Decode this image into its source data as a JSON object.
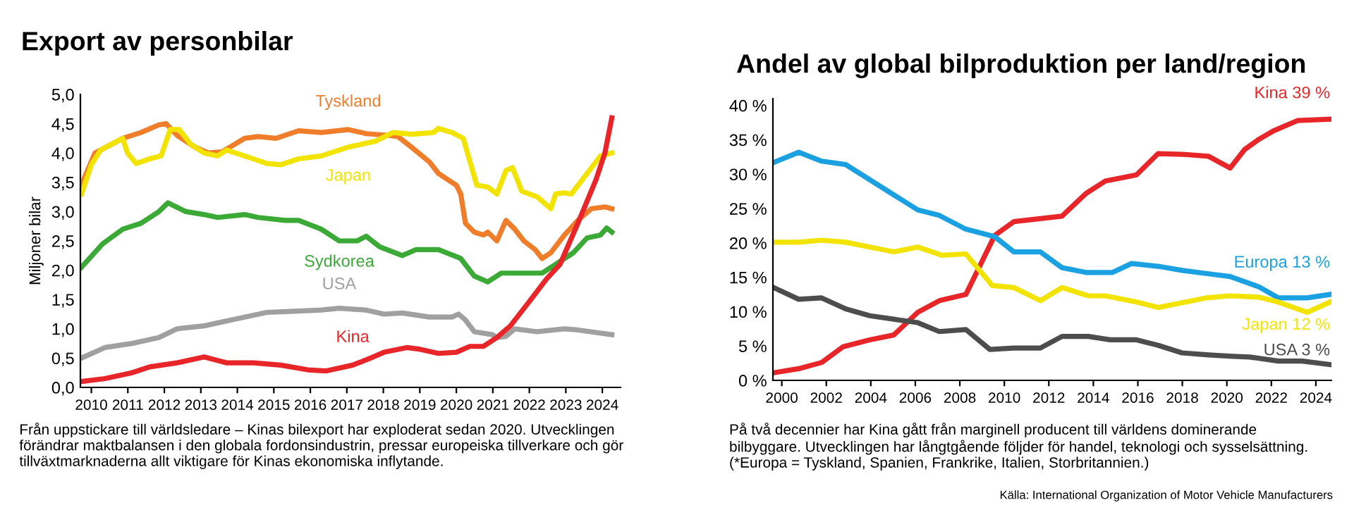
{
  "chart_data": [
    {
      "type": "line",
      "title": "Export av personbilar",
      "ylabel": "Miljoner bilar",
      "xlim": [
        2009.7,
        2024.5
      ],
      "ylim": [
        0,
        5
      ],
      "xticks": [
        2010,
        2011,
        2012,
        2013,
        2014,
        2015,
        2016,
        2017,
        2018,
        2019,
        2020,
        2021,
        2022,
        2023,
        2024
      ],
      "yticks": [
        {
          "value": 0,
          "label": "0,0"
        },
        {
          "value": 0.5,
          "label": "0,5"
        },
        {
          "value": 1,
          "label": "1,0"
        },
        {
          "value": 1.5,
          "label": "1,5"
        },
        {
          "value": 2,
          "label": "2,0"
        },
        {
          "value": 2.5,
          "label": "2,5"
        },
        {
          "value": 3,
          "label": "3,0"
        },
        {
          "value": 3.5,
          "label": "3,5"
        },
        {
          "value": 4,
          "label": "4,0"
        },
        {
          "value": 4.5,
          "label": "4,5"
        },
        {
          "value": 5,
          "label": "5,0"
        }
      ],
      "grid": false,
      "legend": false,
      "line_style": "solid",
      "marker": "none",
      "series": [
        {
          "name": "Tyskland",
          "color": "#f07d2a",
          "x": [
            2009.73,
            2010.1,
            2010.86,
            2011.36,
            2011.85,
            2012.05,
            2012.35,
            2012.84,
            2013.21,
            2013.58,
            2014.2,
            2014.57,
            2015.06,
            2015.68,
            2016.3,
            2017.04,
            2017.53,
            2018.15,
            2018.4,
            2018.77,
            2019.26,
            2019.51,
            2020.0,
            2020.12,
            2020.25,
            2020.49,
            2020.74,
            2020.86,
            2021.11,
            2021.36,
            2021.6,
            2021.85,
            2022.16,
            2022.35,
            2022.59,
            2022.96,
            2023.33,
            2023.7,
            2024.07,
            2024.26
          ],
          "values": [
            3.46,
            4.0,
            4.25,
            4.35,
            4.48,
            4.5,
            4.3,
            4.1,
            4.0,
            4.02,
            4.25,
            4.28,
            4.25,
            4.38,
            4.35,
            4.4,
            4.33,
            4.3,
            4.28,
            4.1,
            3.85,
            3.65,
            3.45,
            3.3,
            2.8,
            2.65,
            2.6,
            2.65,
            2.5,
            2.85,
            2.7,
            2.5,
            2.35,
            2.2,
            2.3,
            2.6,
            2.85,
            3.05,
            3.08,
            3.05
          ]
        },
        {
          "name": "Japan",
          "color": "#f2e400",
          "x": [
            2009.73,
            2010.0,
            2010.25,
            2010.86,
            2010.99,
            2011.23,
            2011.6,
            2011.91,
            2012.16,
            2012.41,
            2012.72,
            2013.09,
            2013.46,
            2013.7,
            2014.2,
            2014.81,
            2015.19,
            2015.68,
            2016.3,
            2017.04,
            2017.78,
            2018.27,
            2018.77,
            2019.38,
            2019.51,
            2019.88,
            2020.19,
            2020.56,
            2020.86,
            2021.11,
            2021.36,
            2021.54,
            2021.79,
            2022.22,
            2022.59,
            2022.72,
            2022.96,
            2023.15,
            2023.58,
            2023.95,
            2024.26
          ],
          "values": [
            3.3,
            3.8,
            4.05,
            4.25,
            4.0,
            3.82,
            3.9,
            3.95,
            4.4,
            4.4,
            4.15,
            4.0,
            3.95,
            4.05,
            3.95,
            3.82,
            3.8,
            3.9,
            3.95,
            4.1,
            4.2,
            4.35,
            4.32,
            4.35,
            4.42,
            4.35,
            4.25,
            3.45,
            3.42,
            3.3,
            3.7,
            3.75,
            3.35,
            3.25,
            3.05,
            3.3,
            3.32,
            3.3,
            3.65,
            3.95,
            4.0
          ]
        },
        {
          "name": "Sydkorea",
          "color": "#3aa935",
          "x": [
            2009.73,
            2010.31,
            2010.86,
            2011.36,
            2011.85,
            2012.1,
            2012.59,
            2013.09,
            2013.46,
            2014.2,
            2014.57,
            2015.31,
            2015.68,
            2016.3,
            2016.79,
            2017.28,
            2017.53,
            2017.9,
            2018.52,
            2018.89,
            2019.51,
            2020.12,
            2020.49,
            2020.86,
            2021.23,
            2021.85,
            2022.35,
            2022.72,
            2023.21,
            2023.58,
            2023.95,
            2024.12,
            2024.26
          ],
          "values": [
            2.05,
            2.45,
            2.7,
            2.8,
            3.0,
            3.15,
            3.0,
            2.95,
            2.9,
            2.95,
            2.9,
            2.85,
            2.85,
            2.7,
            2.5,
            2.5,
            2.58,
            2.4,
            2.25,
            2.35,
            2.35,
            2.2,
            1.9,
            1.8,
            1.95,
            1.95,
            1.95,
            2.1,
            2.3,
            2.55,
            2.6,
            2.72,
            2.65
          ]
        },
        {
          "name": "USA",
          "color": "#a0a0a0",
          "x": [
            2009.73,
            2010.37,
            2011.11,
            2011.85,
            2012.35,
            2013.09,
            2014.06,
            2014.81,
            2015.55,
            2016.3,
            2016.79,
            2017.53,
            2018.02,
            2018.52,
            2019.26,
            2019.88,
            2020.06,
            2020.25,
            2020.49,
            2020.99,
            2021.11,
            2021.36,
            2021.6,
            2022.22,
            2022.96,
            2023.33,
            2024.26
          ],
          "values": [
            0.5,
            0.68,
            0.75,
            0.85,
            1.0,
            1.05,
            1.18,
            1.28,
            1.3,
            1.32,
            1.35,
            1.32,
            1.25,
            1.27,
            1.2,
            1.2,
            1.25,
            1.15,
            0.95,
            0.9,
            0.85,
            0.87,
            1.0,
            0.95,
            1.0,
            0.98,
            0.9
          ]
        },
        {
          "name": "Kina",
          "color": "#e8262a",
          "x": [
            2009.73,
            2010.37,
            2011.11,
            2011.6,
            2012.35,
            2013.09,
            2013.7,
            2014.44,
            2015.19,
            2015.93,
            2016.42,
            2017.16,
            2017.65,
            2018.02,
            2018.64,
            2019.01,
            2019.51,
            2020.0,
            2020.37,
            2020.74,
            2021.11,
            2021.48,
            2021.98,
            2022.47,
            2022.84,
            2023.33,
            2023.83,
            2024.07,
            2024.26
          ],
          "values": [
            0.1,
            0.15,
            0.25,
            0.35,
            0.42,
            0.52,
            0.42,
            0.42,
            0.38,
            0.3,
            0.28,
            0.38,
            0.5,
            0.6,
            0.68,
            0.65,
            0.58,
            0.6,
            0.7,
            0.7,
            0.85,
            1.05,
            1.45,
            1.85,
            2.1,
            2.8,
            3.55,
            4.0,
            4.6
          ]
        }
      ],
      "annotations": [
        "Från uppstickare till världsledare – Kinas bilexport har exploderat sedan 2020. Utvecklingen förändrar maktbalansen i den globala fordonsindustrin, pressar europeiska tillverkare och gör tillväxtmarknaderna allt viktigare för Kinas ekonomiska inflytande."
      ]
    },
    {
      "type": "line",
      "title": "Andel av global bilproduktion per land/region",
      "xlim": [
        1999.6,
        2024.7
      ],
      "ylim": [
        0,
        41
      ],
      "xticks": [
        2000,
        2002,
        2004,
        2006,
        2008,
        2010,
        2012,
        2014,
        2016,
        2018,
        2020,
        2022,
        2024
      ],
      "yticks": [
        {
          "value": 0,
          "label": "0 %"
        },
        {
          "value": 5,
          "label": "5 %"
        },
        {
          "value": 10,
          "label": "10 %"
        },
        {
          "value": 15,
          "label": "15 %"
        },
        {
          "value": 20,
          "label": "20 %"
        },
        {
          "value": 25,
          "label": "25 %"
        },
        {
          "value": 30,
          "label": "30 %"
        },
        {
          "value": 35,
          "label": "35 %"
        },
        {
          "value": 40,
          "label": "40 %"
        }
      ],
      "grid": false,
      "legend": false,
      "line_style": "solid",
      "marker": "none",
      "series": [
        {
          "name": "Kina 39 %",
          "color": "#e8262a",
          "x": [
            1999.63,
            2000.76,
            2001.79,
            2002.76,
            2003.95,
            2005.03,
            2006.11,
            2007.08,
            2008.27,
            2009.57,
            2010.43,
            2012.59,
            2013.67,
            2014.54,
            2015.94,
            2016.91,
            2017.99,
            2019.18,
            2020.15,
            2020.8,
            2021.45,
            2022.09,
            2023.17,
            2024.64
          ],
          "values": [
            1.1,
            1.7,
            2.6,
            4.9,
            5.9,
            6.6,
            9.9,
            11.6,
            12.5,
            21.1,
            23.1,
            23.9,
            27.2,
            29.0,
            29.9,
            33.0,
            32.9,
            32.6,
            30.9,
            33.6,
            35.1,
            36.3,
            37.8,
            38.0
          ]
        },
        {
          "name": "Europa 13 %",
          "color": "#1ba1e2",
          "x": [
            1999.63,
            2000.76,
            2001.79,
            2002.87,
            2003.95,
            2005.03,
            2006.11,
            2007.08,
            2008.27,
            2009.57,
            2010.43,
            2011.62,
            2012.59,
            2013.67,
            2014.86,
            2015.72,
            2016.91,
            2017.99,
            2019.18,
            2020.15,
            2021.45,
            2022.31,
            2023.61,
            2024.64
          ],
          "values": [
            31.7,
            33.2,
            31.9,
            31.4,
            29.2,
            27.0,
            24.8,
            24.0,
            22.0,
            20.9,
            18.7,
            18.7,
            16.4,
            15.7,
            15.7,
            17.0,
            16.6,
            16.0,
            15.5,
            15.1,
            13.6,
            12.0,
            12.0,
            12.5
          ]
        },
        {
          "name": "Japan 12 %",
          "color": "#f2e400",
          "x": [
            1999.63,
            2000.76,
            2001.79,
            2002.87,
            2003.95,
            2005.03,
            2006.11,
            2007.19,
            2008.27,
            2009.46,
            2010.43,
            2011.62,
            2012.59,
            2013.78,
            2014.54,
            2015.94,
            2016.91,
            2017.99,
            2019.07,
            2020.15,
            2021.45,
            2022.31,
            2023.61,
            2024.64
          ],
          "values": [
            20.1,
            20.1,
            20.4,
            20.1,
            19.4,
            18.7,
            19.4,
            18.2,
            18.4,
            13.8,
            13.5,
            11.6,
            13.5,
            12.3,
            12.3,
            11.4,
            10.6,
            11.3,
            12.0,
            12.3,
            12.1,
            11.4,
            9.9,
            11.4
          ]
        },
        {
          "name": "USA 3 %",
          "color": "#4d4d4d",
          "x": [
            1999.63,
            2000.76,
            2001.79,
            2002.87,
            2003.95,
            2005.03,
            2006.11,
            2007.08,
            2008.27,
            2009.35,
            2010.43,
            2011.62,
            2012.59,
            2013.78,
            2014.75,
            2015.94,
            2016.91,
            2017.99,
            2019.18,
            2020.26,
            2021.02,
            2022.31,
            2023.39,
            2024.64
          ],
          "values": [
            13.5,
            11.8,
            12.0,
            10.4,
            9.4,
            8.9,
            8.4,
            7.1,
            7.4,
            4.5,
            4.7,
            4.7,
            6.4,
            6.4,
            5.9,
            5.9,
            5.1,
            4.0,
            3.7,
            3.5,
            3.4,
            2.8,
            2.8,
            2.3
          ]
        }
      ],
      "annotations": [
        "På två decennier har Kina gått från marginell producent till världens dominerande bilbyggare. Utvecklingen har långtgående följder för handel, teknologi och sysselsättning. (*Europa = Tyskland, Spanien, Frankrike, Italien, Storbritannien.)",
        "Källa: International Organization of Motor Vehicle Manufacturers"
      ]
    }
  ]
}
